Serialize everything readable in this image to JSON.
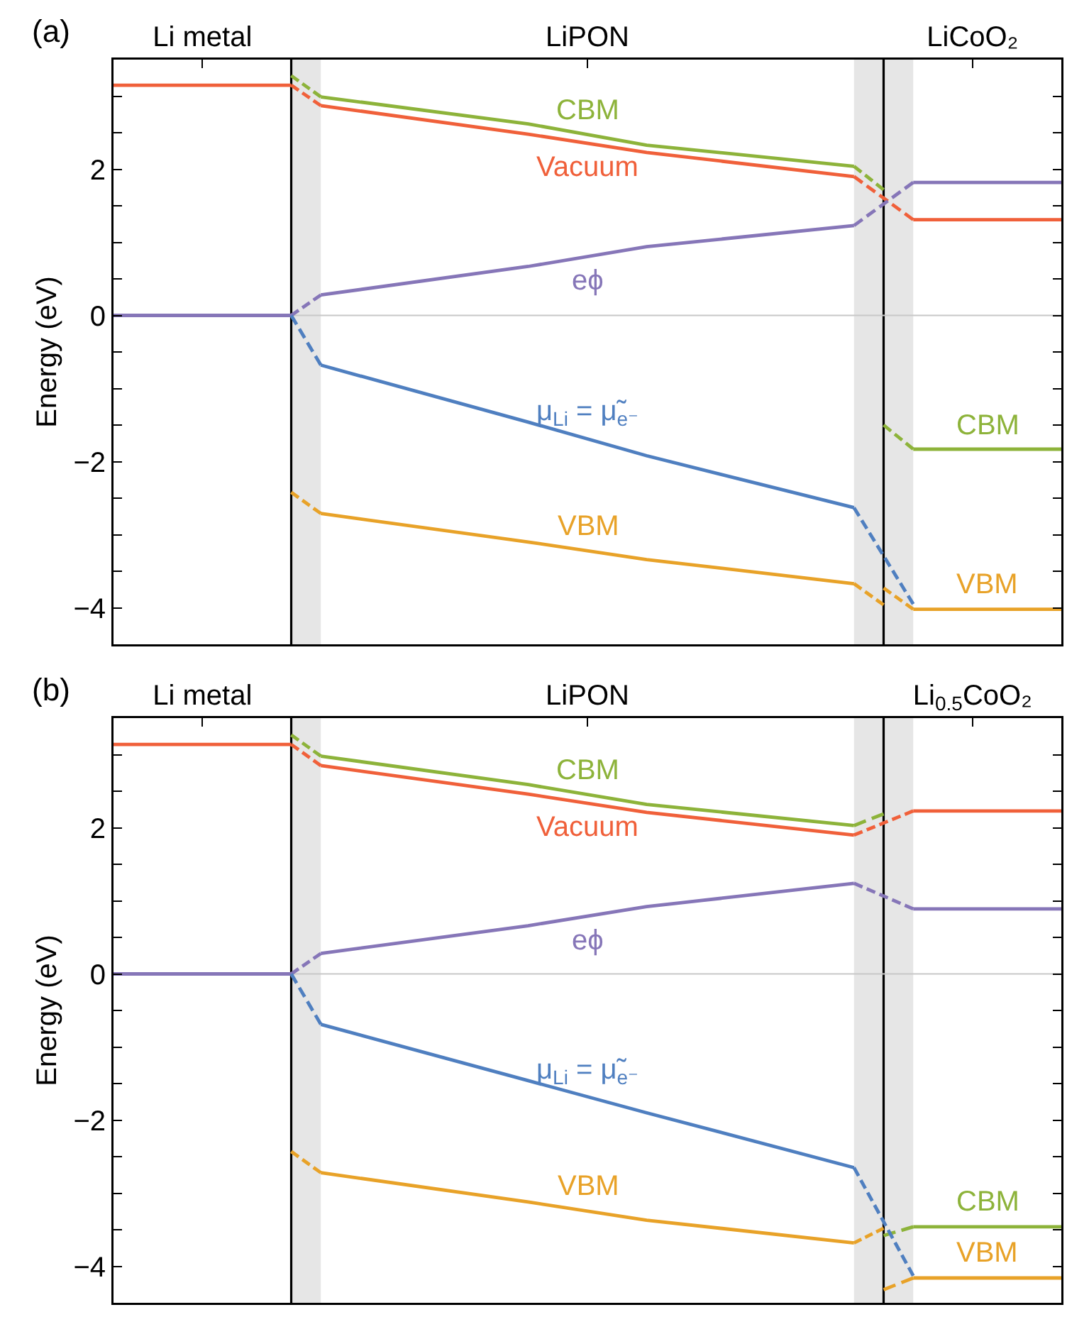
{
  "chart_data": [
    {
      "type": "line",
      "title": "(a)",
      "ylabel": "Energy (eV)",
      "ylim": [
        -4.5,
        3.5
      ],
      "categories": [
        null,
        null,
        null,
        "Li metal",
        null,
        null,
        null,
        null,
        null,
        null,
        null,
        null,
        null,
        null,
        null,
        null,
        "LiPON",
        null,
        null,
        null,
        null,
        null,
        null,
        null,
        null,
        null,
        null,
        null,
        null,
        "LiCoO₂",
        null,
        null,
        null
      ],
      "yticks": [
        {
          "value": -4,
          "label": "−4"
        },
        {
          "value": -3.5,
          "label": null
        },
        {
          "value": -3,
          "label": null
        },
        {
          "value": -2.5,
          "label": null
        },
        {
          "value": -2,
          "label": "−2"
        },
        {
          "value": -1.5,
          "label": null
        },
        {
          "value": -1,
          "label": null
        },
        {
          "value": -0.5,
          "label": null
        },
        {
          "value": 0,
          "label": "0"
        },
        {
          "value": 0.5,
          "label": null
        },
        {
          "value": 1,
          "label": null
        },
        {
          "value": 1.5,
          "label": null
        },
        {
          "value": 2,
          "label": "2"
        },
        {
          "value": 2.5,
          "label": null
        },
        {
          "value": 3,
          "label": null
        }
      ],
      "legend": false,
      "line_style": "solid",
      "ref_lines": [
        {
          "axis": "y",
          "value": 0,
          "color": "#c8c8c8"
        }
      ],
      "series": [
        {
          "color": "#f0603a",
          "values": [
            3.15,
            null,
            null,
            null,
            null,
            null,
            3.15,
            null,
            null,
            null,
            null,
            null,
            null,
            null,
            null,
            null,
            null,
            null,
            null,
            null,
            null,
            null,
            null,
            null,
            null,
            null,
            null,
            null,
            null,
            null,
            null,
            null,
            null
          ]
        },
        {
          "color": "#f0603a",
          "line_style": "dashed",
          "values": [
            null,
            null,
            null,
            null,
            null,
            null,
            3.15,
            2.87,
            null,
            null,
            null,
            null,
            null,
            null,
            null,
            null,
            null,
            null,
            null,
            null,
            null,
            null,
            null,
            null,
            null,
            null,
            null,
            null,
            null,
            null,
            null,
            null,
            null
          ]
        },
        {
          "name": "Vacuum",
          "color": "#f0603a",
          "values": [
            null,
            null,
            null,
            null,
            null,
            null,
            null,
            2.87,
            null,
            null,
            null,
            null,
            null,
            null,
            2.48,
            null,
            null,
            null,
            2.23,
            null,
            null,
            null,
            null,
            null,
            null,
            1.9,
            null,
            null,
            null,
            null,
            null,
            null,
            null
          ]
        },
        {
          "color": "#f0603a",
          "line_style": "dashed",
          "values": [
            null,
            null,
            null,
            null,
            null,
            null,
            null,
            null,
            null,
            null,
            null,
            null,
            null,
            null,
            null,
            null,
            null,
            null,
            null,
            null,
            null,
            null,
            null,
            null,
            null,
            1.9,
            null,
            1.31,
            null,
            null,
            null,
            null,
            null
          ]
        },
        {
          "color": "#f0603a",
          "values": [
            null,
            null,
            null,
            null,
            null,
            null,
            null,
            null,
            null,
            null,
            null,
            null,
            null,
            null,
            null,
            null,
            null,
            null,
            null,
            null,
            null,
            null,
            null,
            null,
            null,
            null,
            null,
            1.31,
            null,
            null,
            null,
            null,
            1.31
          ]
        },
        {
          "color": "#8db33a",
          "line_style": "dashed",
          "values": [
            null,
            null,
            null,
            null,
            null,
            null,
            3.28,
            2.99,
            null,
            null,
            null,
            null,
            null,
            null,
            null,
            null,
            null,
            null,
            null,
            null,
            null,
            null,
            null,
            null,
            null,
            null,
            null,
            null,
            null,
            null,
            null,
            null,
            null
          ]
        },
        {
          "name": "CBM",
          "color": "#8db33a",
          "values": [
            null,
            null,
            null,
            null,
            null,
            null,
            null,
            2.99,
            null,
            null,
            null,
            null,
            null,
            null,
            2.62,
            null,
            null,
            null,
            2.33,
            null,
            null,
            null,
            null,
            null,
            null,
            2.04,
            null,
            null,
            null,
            null,
            null,
            null,
            null
          ]
        },
        {
          "color": "#8db33a",
          "line_style": "dashed",
          "values": [
            null,
            null,
            null,
            null,
            null,
            null,
            null,
            null,
            null,
            null,
            null,
            null,
            null,
            null,
            null,
            null,
            null,
            null,
            null,
            null,
            null,
            null,
            null,
            null,
            null,
            2.04,
            1.72,
            null,
            null,
            null,
            null,
            null,
            null
          ]
        },
        {
          "color": "#8db33a",
          "line_style": "dashed",
          "values": [
            null,
            null,
            null,
            null,
            null,
            null,
            null,
            null,
            null,
            null,
            null,
            null,
            null,
            null,
            null,
            null,
            null,
            null,
            null,
            null,
            null,
            null,
            null,
            null,
            null,
            null,
            -1.5,
            -1.83,
            null,
            null,
            null,
            null,
            null
          ]
        },
        {
          "name": "CBM",
          "color": "#8db33a",
          "values": [
            null,
            null,
            null,
            null,
            null,
            null,
            null,
            null,
            null,
            null,
            null,
            null,
            null,
            null,
            null,
            null,
            null,
            null,
            null,
            null,
            null,
            null,
            null,
            null,
            null,
            null,
            null,
            -1.83,
            null,
            null,
            null,
            null,
            -1.83
          ]
        },
        {
          "color": "#8676b8",
          "values": [
            0,
            null,
            null,
            null,
            null,
            null,
            0,
            null,
            null,
            null,
            null,
            null,
            null,
            null,
            null,
            null,
            null,
            null,
            null,
            null,
            null,
            null,
            null,
            null,
            null,
            null,
            null,
            null,
            null,
            null,
            null,
            null,
            null
          ]
        },
        {
          "color": "#8676b8",
          "line_style": "dashed",
          "values": [
            null,
            null,
            null,
            null,
            null,
            null,
            0,
            0.28,
            null,
            null,
            null,
            null,
            null,
            null,
            null,
            null,
            null,
            null,
            null,
            null,
            null,
            null,
            null,
            null,
            null,
            null,
            null,
            null,
            null,
            null,
            null,
            null,
            null
          ]
        },
        {
          "name": "eϕ",
          "color": "#8676b8",
          "values": [
            null,
            null,
            null,
            null,
            null,
            null,
            null,
            0.28,
            null,
            null,
            null,
            null,
            null,
            null,
            0.67,
            null,
            null,
            null,
            0.94,
            null,
            null,
            null,
            null,
            null,
            null,
            1.23,
            null,
            null,
            null,
            null,
            null,
            null,
            null
          ]
        },
        {
          "color": "#8676b8",
          "line_style": "dashed",
          "values": [
            null,
            null,
            null,
            null,
            null,
            null,
            null,
            null,
            null,
            null,
            null,
            null,
            null,
            null,
            null,
            null,
            null,
            null,
            null,
            null,
            null,
            null,
            null,
            null,
            null,
            1.23,
            null,
            1.82,
            null,
            null,
            null,
            null,
            null
          ]
        },
        {
          "color": "#8676b8",
          "values": [
            null,
            null,
            null,
            null,
            null,
            null,
            null,
            null,
            null,
            null,
            null,
            null,
            null,
            null,
            null,
            null,
            null,
            null,
            null,
            null,
            null,
            null,
            null,
            null,
            null,
            null,
            null,
            1.82,
            null,
            null,
            null,
            null,
            1.82
          ]
        },
        {
          "color": "#4f7fc0",
          "line_style": "dashed",
          "values": [
            null,
            null,
            null,
            null,
            null,
            null,
            0,
            -0.68,
            null,
            null,
            null,
            null,
            null,
            null,
            null,
            null,
            null,
            null,
            null,
            null,
            null,
            null,
            null,
            null,
            null,
            null,
            null,
            null,
            null,
            null,
            null,
            null,
            null
          ]
        },
        {
          "name": "μ$_{Li}$ = μ̃$_{e⁻}$",
          "color": "#4f7fc0",
          "values": [
            null,
            null,
            null,
            null,
            null,
            null,
            null,
            -0.68,
            null,
            null,
            null,
            null,
            null,
            null,
            -1.46,
            null,
            null,
            null,
            -1.92,
            null,
            null,
            null,
            null,
            null,
            null,
            -2.63,
            null,
            null,
            null,
            null,
            null,
            null,
            null
          ]
        },
        {
          "color": "#4f7fc0",
          "line_style": "dashed",
          "values": [
            null,
            null,
            null,
            null,
            null,
            null,
            null,
            null,
            null,
            null,
            null,
            null,
            null,
            null,
            null,
            null,
            null,
            null,
            null,
            null,
            null,
            null,
            null,
            null,
            null,
            -2.63,
            null,
            -3.95,
            null,
            null,
            null,
            null,
            null
          ]
        },
        {
          "color": "#e8a228",
          "line_style": "dashed",
          "values": [
            null,
            null,
            null,
            null,
            null,
            null,
            -2.42,
            -2.71,
            null,
            null,
            null,
            null,
            null,
            null,
            null,
            null,
            null,
            null,
            null,
            null,
            null,
            null,
            null,
            null,
            null,
            null,
            null,
            null,
            null,
            null,
            null,
            null,
            null
          ]
        },
        {
          "name": "VBM",
          "color": "#e8a228",
          "values": [
            null,
            null,
            null,
            null,
            null,
            null,
            null,
            -2.71,
            null,
            null,
            null,
            null,
            null,
            null,
            -3.1,
            null,
            null,
            null,
            -3.34,
            null,
            null,
            null,
            null,
            null,
            null,
            -3.67,
            null,
            null,
            null,
            null,
            null,
            null,
            null
          ]
        },
        {
          "color": "#e8a228",
          "line_style": "dashed",
          "values": [
            null,
            null,
            null,
            null,
            null,
            null,
            null,
            null,
            null,
            null,
            null,
            null,
            null,
            null,
            null,
            null,
            null,
            null,
            null,
            null,
            null,
            null,
            null,
            null,
            null,
            -3.67,
            -3.96,
            null,
            null,
            null,
            null,
            null,
            null
          ]
        },
        {
          "color": "#e8a228",
          "line_style": "dashed",
          "values": [
            null,
            null,
            null,
            null,
            null,
            null,
            null,
            null,
            null,
            null,
            null,
            null,
            null,
            null,
            null,
            null,
            null,
            null,
            null,
            null,
            null,
            null,
            null,
            null,
            null,
            null,
            -3.73,
            -4.02,
            null,
            null,
            null,
            null,
            null
          ]
        },
        {
          "name": "VBM",
          "color": "#e8a228",
          "values": [
            null,
            null,
            null,
            null,
            null,
            null,
            null,
            null,
            null,
            null,
            null,
            null,
            null,
            null,
            null,
            null,
            null,
            null,
            null,
            null,
            null,
            null,
            null,
            null,
            null,
            null,
            null,
            -4.02,
            null,
            null,
            null,
            null,
            -4.02
          ]
        }
      ]
    },
    {
      "type": "line",
      "title": "(b)",
      "ylabel": "Energy (eV)",
      "ylim": [
        -4.5,
        3.5
      ],
      "categories": [
        null,
        null,
        null,
        "Li metal",
        null,
        null,
        null,
        null,
        null,
        null,
        null,
        null,
        null,
        null,
        null,
        null,
        "LiPON",
        null,
        null,
        null,
        null,
        null,
        null,
        null,
        null,
        null,
        null,
        null,
        null,
        "Li$_{0.5}$CoO₂",
        null,
        null,
        null
      ],
      "yticks": [
        {
          "value": -4,
          "label": "−4"
        },
        {
          "value": -3.5,
          "label": null
        },
        {
          "value": -3,
          "label": null
        },
        {
          "value": -2.5,
          "label": null
        },
        {
          "value": -2,
          "label": "−2"
        },
        {
          "value": -1.5,
          "label": null
        },
        {
          "value": -1,
          "label": null
        },
        {
          "value": -0.5,
          "label": null
        },
        {
          "value": 0,
          "label": "0"
        },
        {
          "value": 0.5,
          "label": null
        },
        {
          "value": 1,
          "label": null
        },
        {
          "value": 1.5,
          "label": null
        },
        {
          "value": 2,
          "label": "2"
        },
        {
          "value": 2.5,
          "label": null
        },
        {
          "value": 3,
          "label": null
        }
      ],
      "legend": false,
      "line_style": "solid",
      "ref_lines": [
        {
          "axis": "y",
          "value": 0,
          "color": "#c8c8c8"
        }
      ],
      "series": [
        {
          "color": "#f0603a",
          "values": [
            3.14,
            null,
            null,
            null,
            null,
            null,
            3.14,
            null,
            null,
            null,
            null,
            null,
            null,
            null,
            null,
            null,
            null,
            null,
            null,
            null,
            null,
            null,
            null,
            null,
            null,
            null,
            null,
            null,
            null,
            null,
            null,
            null,
            null
          ]
        },
        {
          "color": "#f0603a",
          "line_style": "dashed",
          "values": [
            null,
            null,
            null,
            null,
            null,
            null,
            3.14,
            2.85,
            null,
            null,
            null,
            null,
            null,
            null,
            null,
            null,
            null,
            null,
            null,
            null,
            null,
            null,
            null,
            null,
            null,
            null,
            null,
            null,
            null,
            null,
            null,
            null,
            null
          ]
        },
        {
          "name": "Vacuum",
          "color": "#f0603a",
          "values": [
            null,
            null,
            null,
            null,
            null,
            null,
            null,
            2.85,
            null,
            null,
            null,
            null,
            null,
            null,
            2.46,
            null,
            null,
            null,
            2.21,
            null,
            null,
            null,
            null,
            null,
            null,
            1.9,
            null,
            null,
            null,
            null,
            null,
            null,
            null
          ]
        },
        {
          "color": "#f0603a",
          "line_style": "dashed",
          "values": [
            null,
            null,
            null,
            null,
            null,
            null,
            null,
            null,
            null,
            null,
            null,
            null,
            null,
            null,
            null,
            null,
            null,
            null,
            null,
            null,
            null,
            null,
            null,
            null,
            null,
            1.9,
            null,
            2.23,
            null,
            null,
            null,
            null,
            null
          ]
        },
        {
          "color": "#f0603a",
          "values": [
            null,
            null,
            null,
            null,
            null,
            null,
            null,
            null,
            null,
            null,
            null,
            null,
            null,
            null,
            null,
            null,
            null,
            null,
            null,
            null,
            null,
            null,
            null,
            null,
            null,
            null,
            null,
            2.23,
            null,
            null,
            null,
            null,
            2.23
          ]
        },
        {
          "color": "#8db33a",
          "line_style": "dashed",
          "values": [
            null,
            null,
            null,
            null,
            null,
            null,
            3.27,
            2.98,
            null,
            null,
            null,
            null,
            null,
            null,
            null,
            null,
            null,
            null,
            null,
            null,
            null,
            null,
            null,
            null,
            null,
            null,
            null,
            null,
            null,
            null,
            null,
            null,
            null
          ]
        },
        {
          "name": "CBM",
          "color": "#8db33a",
          "values": [
            null,
            null,
            null,
            null,
            null,
            null,
            null,
            2.98,
            null,
            null,
            null,
            null,
            null,
            null,
            2.59,
            null,
            null,
            null,
            2.32,
            null,
            null,
            null,
            null,
            null,
            null,
            2.03,
            null,
            null,
            null,
            null,
            null,
            null,
            null
          ]
        },
        {
          "color": "#8db33a",
          "line_style": "dashed",
          "values": [
            null,
            null,
            null,
            null,
            null,
            null,
            null,
            null,
            null,
            null,
            null,
            null,
            null,
            null,
            null,
            null,
            null,
            null,
            null,
            null,
            null,
            null,
            null,
            null,
            null,
            2.03,
            2.19,
            null,
            null,
            null,
            null,
            null,
            null
          ]
        },
        {
          "color": "#8db33a",
          "line_style": "dashed",
          "values": [
            null,
            null,
            null,
            null,
            null,
            null,
            null,
            null,
            null,
            null,
            null,
            null,
            null,
            null,
            null,
            null,
            null,
            null,
            null,
            null,
            null,
            null,
            null,
            null,
            null,
            null,
            -3.58,
            -3.46,
            null,
            null,
            null,
            null,
            null
          ]
        },
        {
          "name": "CBM",
          "color": "#8db33a",
          "values": [
            null,
            null,
            null,
            null,
            null,
            null,
            null,
            null,
            null,
            null,
            null,
            null,
            null,
            null,
            null,
            null,
            null,
            null,
            null,
            null,
            null,
            null,
            null,
            null,
            null,
            null,
            null,
            -3.46,
            null,
            null,
            null,
            null,
            -3.46
          ]
        },
        {
          "color": "#8676b8",
          "values": [
            0,
            null,
            null,
            null,
            null,
            null,
            0,
            null,
            null,
            null,
            null,
            null,
            null,
            null,
            null,
            null,
            null,
            null,
            null,
            null,
            null,
            null,
            null,
            null,
            null,
            null,
            null,
            null,
            null,
            null,
            null,
            null,
            null
          ]
        },
        {
          "color": "#8676b8",
          "line_style": "dashed",
          "values": [
            null,
            null,
            null,
            null,
            null,
            null,
            0,
            0.28,
            null,
            null,
            null,
            null,
            null,
            null,
            null,
            null,
            null,
            null,
            null,
            null,
            null,
            null,
            null,
            null,
            null,
            null,
            null,
            null,
            null,
            null,
            null,
            null,
            null
          ]
        },
        {
          "name": "eϕ",
          "color": "#8676b8",
          "values": [
            null,
            null,
            null,
            null,
            null,
            null,
            null,
            0.28,
            null,
            null,
            null,
            null,
            null,
            null,
            0.66,
            null,
            null,
            null,
            0.92,
            null,
            null,
            null,
            null,
            null,
            null,
            1.24,
            null,
            null,
            null,
            null,
            null,
            null,
            null
          ]
        },
        {
          "color": "#8676b8",
          "line_style": "dashed",
          "values": [
            null,
            null,
            null,
            null,
            null,
            null,
            null,
            null,
            null,
            null,
            null,
            null,
            null,
            null,
            null,
            null,
            null,
            null,
            null,
            null,
            null,
            null,
            null,
            null,
            null,
            1.24,
            null,
            0.89,
            null,
            null,
            null,
            null,
            null
          ]
        },
        {
          "color": "#8676b8",
          "values": [
            null,
            null,
            null,
            null,
            null,
            null,
            null,
            null,
            null,
            null,
            null,
            null,
            null,
            null,
            null,
            null,
            null,
            null,
            null,
            null,
            null,
            null,
            null,
            null,
            null,
            null,
            null,
            0.89,
            null,
            null,
            null,
            null,
            0.89
          ]
        },
        {
          "color": "#4f7fc0",
          "line_style": "dashed",
          "values": [
            null,
            null,
            null,
            null,
            null,
            null,
            0,
            -0.69,
            null,
            null,
            null,
            null,
            null,
            null,
            null,
            null,
            null,
            null,
            null,
            null,
            null,
            null,
            null,
            null,
            null,
            null,
            null,
            null,
            null,
            null,
            null,
            null,
            null
          ]
        },
        {
          "name": "μ$_{Li}$ = μ̃$_{e⁻}$",
          "color": "#4f7fc0",
          "values": [
            null,
            null,
            null,
            null,
            null,
            null,
            null,
            -0.69,
            null,
            null,
            null,
            null,
            null,
            null,
            -1.46,
            null,
            null,
            null,
            -1.9,
            null,
            null,
            null,
            null,
            null,
            null,
            -2.65,
            null,
            null,
            null,
            null,
            null,
            null,
            null
          ]
        },
        {
          "color": "#4f7fc0",
          "line_style": "dashed",
          "values": [
            null,
            null,
            null,
            null,
            null,
            null,
            null,
            null,
            null,
            null,
            null,
            null,
            null,
            null,
            null,
            null,
            null,
            null,
            null,
            null,
            null,
            null,
            null,
            null,
            null,
            -2.65,
            null,
            -4.13,
            null,
            null,
            null,
            null,
            null
          ]
        },
        {
          "color": "#e8a228",
          "line_style": "dashed",
          "values": [
            null,
            null,
            null,
            null,
            null,
            null,
            -2.43,
            -2.72,
            null,
            null,
            null,
            null,
            null,
            null,
            null,
            null,
            null,
            null,
            null,
            null,
            null,
            null,
            null,
            null,
            null,
            null,
            null,
            null,
            null,
            null,
            null,
            null,
            null
          ]
        },
        {
          "name": "VBM",
          "color": "#e8a228",
          "values": [
            null,
            null,
            null,
            null,
            null,
            null,
            null,
            -2.72,
            null,
            null,
            null,
            null,
            null,
            null,
            -3.12,
            null,
            null,
            null,
            -3.37,
            null,
            null,
            null,
            null,
            null,
            null,
            -3.68,
            null,
            null,
            null,
            null,
            null,
            null,
            null
          ]
        },
        {
          "color": "#e8a228",
          "line_style": "dashed",
          "values": [
            null,
            null,
            null,
            null,
            null,
            null,
            null,
            null,
            null,
            null,
            null,
            null,
            null,
            null,
            null,
            null,
            null,
            null,
            null,
            null,
            null,
            null,
            null,
            null,
            null,
            -3.68,
            -3.48,
            null,
            null,
            null,
            null,
            null,
            null
          ]
        },
        {
          "color": "#e8a228",
          "line_style": "dashed",
          "values": [
            null,
            null,
            null,
            null,
            null,
            null,
            null,
            null,
            null,
            null,
            null,
            null,
            null,
            null,
            null,
            null,
            null,
            null,
            null,
            null,
            null,
            null,
            null,
            null,
            null,
            null,
            -4.32,
            -4.16,
            null,
            null,
            null,
            null,
            null
          ]
        },
        {
          "name": "VBM",
          "color": "#e8a228",
          "values": [
            null,
            null,
            null,
            null,
            null,
            null,
            null,
            null,
            null,
            null,
            null,
            null,
            null,
            null,
            null,
            null,
            null,
            null,
            null,
            null,
            null,
            null,
            null,
            null,
            null,
            null,
            null,
            -4.16,
            null,
            null,
            null,
            null,
            -4.16
          ]
        }
      ]
    }
  ]
}
